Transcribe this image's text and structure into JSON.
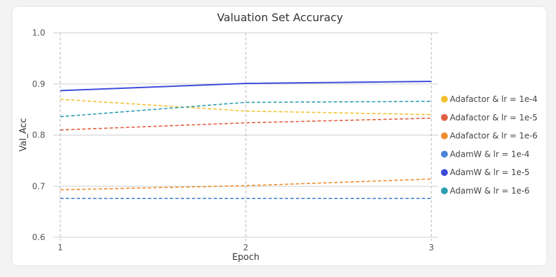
{
  "chart_data": {
    "type": "line",
    "title": "Valuation Set Accuracy",
    "xlabel": "Epoch",
    "ylabel": "Val_Acc",
    "categories": [
      "1",
      "2",
      "3"
    ],
    "x": [
      1,
      2,
      3
    ],
    "ylim": [
      0.6,
      1.0
    ],
    "yticks": [
      0.6,
      0.7,
      0.8,
      0.9,
      1.0
    ],
    "ytick_labels": [
      "0.6",
      "0.7",
      "0.8",
      "0.9",
      "1.0"
    ],
    "grid": true,
    "legend_position": "right",
    "series": [
      {
        "name": "Adafactor & lr = 1e-4",
        "color": "#F2C12E",
        "dash": true,
        "values": [
          0.87,
          0.847,
          0.84
        ]
      },
      {
        "name": "Adafactor & lr = 1e-5",
        "color": "#E15F41",
        "dash": true,
        "values": [
          0.81,
          0.824,
          0.833
        ]
      },
      {
        "name": "Adafactor & lr = 1e-6",
        "color": "#F08C2E",
        "dash": true,
        "values": [
          0.693,
          0.701,
          0.714
        ]
      },
      {
        "name": "AdamW & lr = 1e-4",
        "color": "#4A84D8",
        "dash": true,
        "values": [
          0.676,
          0.676,
          0.676
        ]
      },
      {
        "name": "AdamW & lr = 1e-5",
        "color": "#3B4BDB",
        "dash": false,
        "values": [
          0.887,
          0.901,
          0.905
        ]
      },
      {
        "name": "AdamW & lr = 1e-6",
        "color": "#2A9DAF",
        "dash": true,
        "values": [
          0.836,
          0.864,
          0.866
        ]
      }
    ]
  }
}
